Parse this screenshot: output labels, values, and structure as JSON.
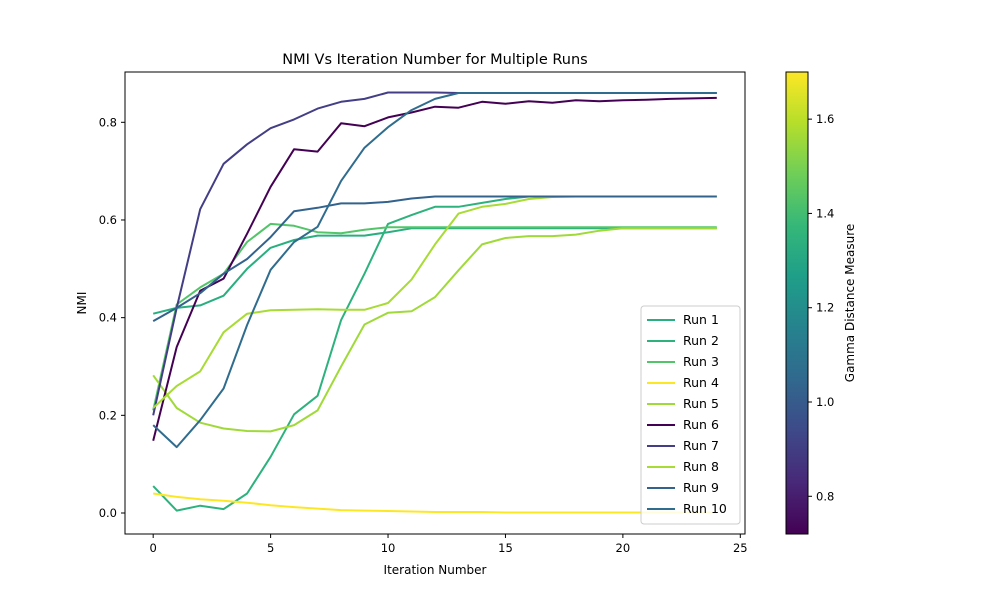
{
  "chart_data": {
    "type": "line",
    "title": "NMI Vs Iteration Number for Multiple Runs",
    "xlabel": "Iteration Number",
    "ylabel": "NMI",
    "xlim": [
      -1.2,
      25.2
    ],
    "ylim": [
      -0.043,
      0.903
    ],
    "xticks": [
      0,
      5,
      10,
      15,
      20,
      25
    ],
    "yticks": [
      0.0,
      0.2,
      0.4,
      0.6,
      0.8
    ],
    "grid": false,
    "legend": "lower-right",
    "x": [
      0,
      1,
      2,
      3,
      4,
      5,
      6,
      7,
      8,
      9,
      10,
      11,
      12,
      13,
      14,
      15,
      16,
      17,
      18,
      19,
      20,
      21,
      22,
      23,
      24
    ],
    "series": [
      {
        "name": "Run 1",
        "color": "#29af7f",
        "values": [
          0.408,
          0.42,
          0.425,
          0.445,
          0.5,
          0.543,
          0.559,
          0.568,
          0.568,
          0.568,
          0.575,
          0.583,
          0.583,
          0.583,
          0.583,
          0.583,
          0.583,
          0.583,
          0.583,
          0.583,
          0.583,
          0.583,
          0.583,
          0.583,
          0.583
        ]
      },
      {
        "name": "Run 2",
        "color": "#2db27d",
        "values": [
          0.055,
          0.005,
          0.015,
          0.008,
          0.04,
          0.115,
          0.202,
          0.24,
          0.395,
          0.49,
          0.592,
          0.61,
          0.627,
          0.627,
          0.635,
          0.643,
          0.648,
          0.648,
          0.648,
          0.648,
          0.648,
          0.648,
          0.648,
          0.648,
          0.648
        ]
      },
      {
        "name": "Run 3",
        "color": "#52c569",
        "values": [
          0.21,
          0.427,
          0.462,
          0.49,
          0.555,
          0.592,
          0.588,
          0.575,
          0.573,
          0.58,
          0.585,
          0.585,
          0.585,
          0.585,
          0.585,
          0.585,
          0.585,
          0.585,
          0.585,
          0.585,
          0.585,
          0.585,
          0.585,
          0.585,
          0.585
        ]
      },
      {
        "name": "Run 4",
        "color": "#fde725",
        "values": [
          0.04,
          0.033,
          0.028,
          0.025,
          0.021,
          0.016,
          0.012,
          0.009,
          0.006,
          0.005,
          0.004,
          0.003,
          0.002,
          0.002,
          0.002,
          0.001,
          0.001,
          0.001,
          0.001,
          0.001,
          0.001,
          0.001,
          0.001,
          0.001,
          0.001
        ]
      },
      {
        "name": "Run 5",
        "color": "#a0da39",
        "values": [
          0.282,
          0.215,
          0.185,
          0.173,
          0.168,
          0.167,
          0.18,
          0.21,
          0.3,
          0.386,
          0.41,
          0.413,
          0.442,
          0.497,
          0.55,
          0.563,
          0.567,
          0.567,
          0.57,
          0.578,
          0.583,
          0.583,
          0.583,
          0.583,
          0.583
        ]
      },
      {
        "name": "Run 6",
        "color": "#440154",
        "values": [
          0.148,
          0.34,
          0.455,
          0.48,
          0.572,
          0.668,
          0.745,
          0.74,
          0.798,
          0.792,
          0.81,
          0.82,
          0.832,
          0.83,
          0.842,
          0.838,
          0.843,
          0.84,
          0.845,
          0.843,
          0.845,
          0.846,
          0.848,
          0.849,
          0.85
        ]
      },
      {
        "name": "Run 7",
        "color": "#433e85",
        "values": [
          0.2,
          0.42,
          0.622,
          0.715,
          0.755,
          0.788,
          0.806,
          0.828,
          0.842,
          0.848,
          0.861,
          0.861,
          0.861,
          0.86,
          0.86,
          0.86,
          0.86,
          0.86,
          0.86,
          0.86,
          0.86,
          0.86,
          0.86,
          0.86,
          0.86
        ]
      },
      {
        "name": "Run 8",
        "color": "#a8db34",
        "values": [
          0.215,
          0.26,
          0.29,
          0.37,
          0.408,
          0.415,
          0.416,
          0.417,
          0.416,
          0.416,
          0.43,
          0.478,
          0.55,
          0.613,
          0.627,
          0.633,
          0.643,
          0.647,
          0.648,
          0.648,
          0.648,
          0.648,
          0.648,
          0.648,
          0.648
        ]
      },
      {
        "name": "Run 9",
        "color": "#33638d",
        "values": [
          0.393,
          0.42,
          0.45,
          0.49,
          0.52,
          0.565,
          0.618,
          0.625,
          0.634,
          0.634,
          0.637,
          0.644,
          0.648,
          0.648,
          0.648,
          0.648,
          0.648,
          0.648,
          0.648,
          0.648,
          0.648,
          0.648,
          0.648,
          0.648,
          0.648
        ]
      },
      {
        "name": "Run 10",
        "color": "#2f6c8e",
        "values": [
          0.18,
          0.135,
          0.19,
          0.255,
          0.385,
          0.498,
          0.555,
          0.586,
          0.68,
          0.748,
          0.79,
          0.825,
          0.848,
          0.86,
          0.86,
          0.86,
          0.86,
          0.86,
          0.86,
          0.86,
          0.86,
          0.86,
          0.86,
          0.86,
          0.86
        ]
      }
    ],
    "colorbar": {
      "label": "Gamma Distance Measure",
      "range": [
        0.72,
        1.7
      ],
      "ticks": [
        0.8,
        1.0,
        1.2,
        1.4,
        1.6
      ],
      "colormap": [
        "#440154",
        "#482878",
        "#3e4989",
        "#31688e",
        "#26828e",
        "#1f9e89",
        "#35b779",
        "#6ece58",
        "#b5de2b",
        "#fde725"
      ]
    }
  }
}
